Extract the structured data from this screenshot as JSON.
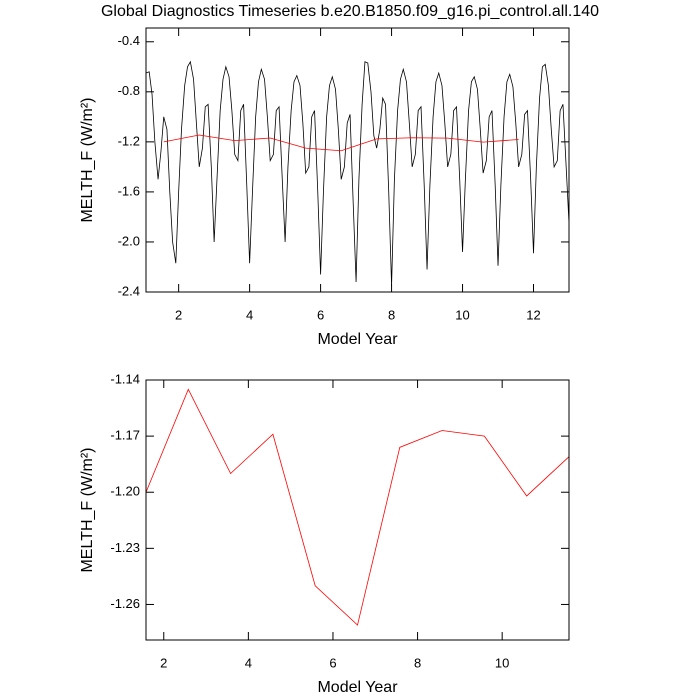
{
  "chart_data": [
    {
      "type": "line",
      "title": "Global Diagnostics Timeseries b.e20.B1850.f09_g16.pi_control.all.140",
      "xlabel": "Model Year",
      "ylabel": "MELTH_F (W/m²)",
      "xlim": [
        1.08,
        13.0
      ],
      "xticks": [
        2,
        4,
        6,
        8,
        10,
        12
      ],
      "ylim": [
        -2.4,
        -0.29
      ],
      "yticks": [
        -0.4,
        -0.8,
        -1.2,
        -1.6,
        {
          "value": -2.0,
          "label": "-2.0"
        },
        -2.4
      ],
      "series": [
        {
          "color": "#000000",
          "x": [
            1.08,
            1.17,
            1.25,
            1.33,
            1.42,
            1.5,
            1.58,
            1.67,
            1.75,
            1.83,
            1.92,
            2.0,
            2.08,
            2.17,
            2.25,
            2.33,
            2.42,
            2.5,
            2.58,
            2.67,
            2.75,
            2.83,
            2.92,
            3.0,
            3.08,
            3.17,
            3.25,
            3.33,
            3.42,
            3.5,
            3.58,
            3.67,
            3.75,
            3.83,
            3.92,
            4.0,
            4.08,
            4.17,
            4.25,
            4.33,
            4.42,
            4.5,
            4.58,
            4.67,
            4.75,
            4.83,
            4.92,
            5.0,
            5.08,
            5.17,
            5.25,
            5.33,
            5.42,
            5.5,
            5.58,
            5.67,
            5.75,
            5.83,
            5.92,
            6.0,
            6.08,
            6.17,
            6.25,
            6.33,
            6.42,
            6.5,
            6.58,
            6.67,
            6.75,
            6.83,
            6.92,
            7.0,
            7.08,
            7.17,
            7.25,
            7.33,
            7.42,
            7.5,
            7.58,
            7.67,
            7.75,
            7.83,
            7.92,
            8.0,
            8.08,
            8.17,
            8.25,
            8.33,
            8.42,
            8.5,
            8.58,
            8.67,
            8.75,
            8.83,
            8.92,
            9.0,
            9.08,
            9.17,
            9.25,
            9.33,
            9.42,
            9.5,
            9.58,
            9.67,
            9.75,
            9.83,
            9.92,
            10.0,
            10.08,
            10.17,
            10.25,
            10.33,
            10.42,
            10.5,
            10.58,
            10.67,
            10.75,
            10.83,
            10.92,
            11.0,
            11.08,
            11.17,
            11.25,
            11.33,
            11.42,
            11.5,
            11.58,
            11.67,
            11.75,
            11.83,
            11.92,
            12.0,
            12.08,
            12.17,
            12.25,
            12.33,
            12.42,
            12.5,
            12.58,
            12.67,
            12.75,
            12.83,
            12.92,
            13.0
          ],
          "values": [
            -0.65,
            -0.64,
            -0.82,
            -1.2,
            -1.5,
            -1.28,
            -1.0,
            -1.1,
            -1.6,
            -2.0,
            -2.17,
            -1.6,
            -1.1,
            -0.75,
            -0.6,
            -0.56,
            -0.7,
            -1.05,
            -1.4,
            -1.25,
            -0.92,
            -0.9,
            -1.4,
            -2.0,
            -1.5,
            -0.95,
            -0.7,
            -0.6,
            -0.68,
            -0.95,
            -1.3,
            -1.35,
            -0.95,
            -0.9,
            -1.55,
            -2.17,
            -1.6,
            -1.0,
            -0.72,
            -0.62,
            -0.7,
            -1.0,
            -1.35,
            -1.3,
            -0.95,
            -0.92,
            -1.5,
            -2.0,
            -1.4,
            -0.95,
            -0.72,
            -0.67,
            -0.75,
            -1.05,
            -1.45,
            -1.4,
            -1.0,
            -0.95,
            -1.6,
            -2.26,
            -1.6,
            -1.0,
            -0.75,
            -0.68,
            -0.78,
            -1.1,
            -1.5,
            -1.4,
            -1.05,
            -0.98,
            -1.7,
            -2.32,
            -1.5,
            -0.9,
            -0.56,
            -0.57,
            -0.8,
            -1.15,
            -1.25,
            -1.1,
            -0.85,
            -0.9,
            -1.6,
            -2.35,
            -1.5,
            -0.95,
            -0.7,
            -0.62,
            -0.72,
            -1.05,
            -1.4,
            -1.3,
            -0.95,
            -0.92,
            -1.55,
            -2.22,
            -1.55,
            -1.0,
            -0.72,
            -0.65,
            -0.75,
            -1.05,
            -1.4,
            -1.3,
            -0.95,
            -0.92,
            -1.5,
            -2.08,
            -1.5,
            -0.95,
            -0.72,
            -0.68,
            -0.78,
            -1.1,
            -1.45,
            -1.35,
            -1.0,
            -0.95,
            -1.55,
            -2.19,
            -1.55,
            -1.0,
            -0.72,
            -0.66,
            -0.76,
            -1.05,
            -1.4,
            -1.3,
            -0.98,
            -0.95,
            -1.5,
            -2.09,
            -1.4,
            -0.85,
            -0.6,
            -0.58,
            -0.75,
            -1.1,
            -1.4,
            -1.35,
            -0.95,
            -0.9,
            -1.4,
            -1.85
          ]
        },
        {
          "color": "#ff0000",
          "x": [
            1.58,
            2.58,
            3.58,
            4.58,
            5.58,
            6.58,
            7.58,
            8.58,
            9.58,
            10.58,
            11.58
          ],
          "values": [
            -1.2,
            -1.145,
            -1.19,
            -1.169,
            -1.25,
            -1.271,
            -1.176,
            -1.167,
            -1.17,
            -1.202,
            -1.181
          ]
        }
      ]
    },
    {
      "type": "line",
      "xlabel": "Model Year",
      "ylabel": "MELTH_F (W/m²)",
      "xlim": [
        1.58,
        11.58
      ],
      "xticks": [
        2,
        4,
        6,
        8,
        10
      ],
      "ylim": [
        -1.279,
        -1.14
      ],
      "yticks": [
        {
          "value": -1.14,
          "label": "-1.14"
        },
        {
          "value": -1.17,
          "label": "-1.17"
        },
        {
          "value": -1.2,
          "label": "-1.20"
        },
        {
          "value": -1.23,
          "label": "-1.23"
        },
        {
          "value": -1.26,
          "label": "-1.26"
        }
      ],
      "series": [
        {
          "color": "#ff0000",
          "x": [
            1.58,
            2.58,
            3.58,
            4.58,
            5.58,
            6.58,
            7.58,
            8.58,
            9.58,
            10.58,
            11.58
          ],
          "values": [
            -1.2,
            -1.145,
            -1.19,
            -1.169,
            -1.25,
            -1.271,
            -1.176,
            -1.167,
            -1.17,
            -1.202,
            -1.181
          ]
        }
      ]
    }
  ]
}
